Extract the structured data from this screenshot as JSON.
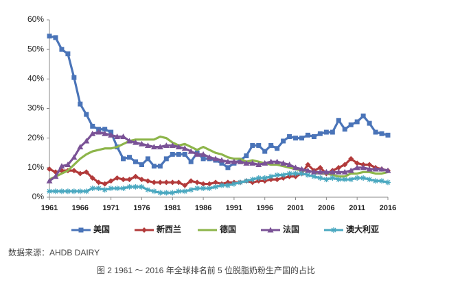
{
  "chart_data": {
    "type": "line",
    "x": [
      1961,
      1962,
      1963,
      1964,
      1965,
      1966,
      1967,
      1968,
      1969,
      1970,
      1971,
      1972,
      1973,
      1974,
      1975,
      1976,
      1977,
      1978,
      1979,
      1980,
      1981,
      1982,
      1983,
      1984,
      1985,
      1986,
      1987,
      1988,
      1989,
      1990,
      1991,
      1992,
      1993,
      1994,
      1995,
      1996,
      1997,
      1998,
      1999,
      2000,
      2001,
      2002,
      2003,
      2004,
      2005,
      2006,
      2007,
      2008,
      2009,
      2010,
      2011,
      2012,
      2013,
      2014,
      2015,
      2016
    ],
    "xlim": [
      1961,
      2016
    ],
    "xticks": [
      1961,
      1966,
      1971,
      1976,
      1981,
      1986,
      1991,
      1996,
      2001,
      2006,
      2011,
      2016
    ],
    "ylim": [
      0,
      60
    ],
    "yticks": [
      {
        "value": 0,
        "label": "0%"
      },
      {
        "value": 10,
        "label": "10%"
      },
      {
        "value": 20,
        "label": "20%"
      },
      {
        "value": 30,
        "label": "30%"
      },
      {
        "value": 40,
        "label": "40%"
      },
      {
        "value": 50,
        "label": "50%"
      },
      {
        "value": 60,
        "label": "60%"
      }
    ],
    "series": [
      {
        "name": "美国",
        "color": "#4a74b8",
        "marker": "square",
        "values": [
          54.5,
          54,
          50,
          48.5,
          40.5,
          31.5,
          28,
          24,
          23,
          23,
          22,
          17,
          13,
          13.5,
          12,
          11,
          13,
          10.5,
          10.5,
          13,
          14.5,
          14.5,
          14.5,
          12,
          15,
          13,
          13,
          12.5,
          11.5,
          10,
          11.5,
          12.5,
          14,
          17.5,
          17.5,
          15.5,
          17.5,
          16.5,
          19,
          20.5,
          20,
          20,
          21,
          20.5,
          21.5,
          22,
          22,
          26,
          23,
          24.5,
          25.5,
          27.5,
          25,
          22,
          21.5,
          21
        ]
      },
      {
        "name": "新西兰",
        "color": "#b23a3a",
        "marker": "diamond",
        "values": [
          9.5,
          8.5,
          9,
          9,
          9,
          8,
          8.5,
          6.5,
          5,
          4.5,
          5.5,
          6.5,
          6,
          6,
          7,
          6,
          5.5,
          5,
          5,
          5,
          5,
          5,
          4,
          5.5,
          5,
          4.5,
          4.5,
          5,
          4.5,
          5,
          5,
          5,
          5.5,
          5,
          5.5,
          5.5,
          6,
          6,
          6.5,
          7,
          7,
          8,
          11,
          9,
          10,
          8,
          9,
          10,
          11,
          13,
          11.5,
          11,
          11,
          10,
          9.5,
          9
        ]
      },
      {
        "name": "德国",
        "color": "#8db54a",
        "marker": "none",
        "values": [
          6,
          7,
          8,
          9,
          11,
          13,
          14.5,
          15.5,
          16,
          16.5,
          16.5,
          17,
          18,
          19,
          19.5,
          19.5,
          19.5,
          19.5,
          20.5,
          20,
          18.5,
          17.5,
          18,
          17,
          16,
          17,
          16,
          15,
          14.5,
          13.5,
          13,
          13,
          12,
          12.5,
          12,
          11.5,
          11,
          11,
          10.5,
          10,
          9.5,
          9,
          9,
          8.5,
          8,
          8,
          7.5,
          7,
          7,
          8,
          8,
          8.5,
          8.5,
          8,
          8,
          8.5
        ]
      },
      {
        "name": "法国",
        "color": "#7a5296",
        "marker": "triangle",
        "values": [
          5.5,
          7,
          10.5,
          11,
          13.5,
          17,
          19,
          21.5,
          22,
          21.5,
          21,
          20.5,
          20.5,
          19,
          18.5,
          18,
          17.5,
          17,
          17,
          17.5,
          17.5,
          17,
          16.5,
          15.5,
          14.5,
          14.5,
          13.5,
          13,
          12.5,
          12,
          12,
          12,
          11.5,
          11.5,
          11,
          11.5,
          12,
          12,
          11.5,
          11,
          10,
          9.5,
          9,
          8.5,
          8.5,
          8.5,
          8.5,
          8.5,
          8.5,
          9,
          10,
          10,
          9.5,
          9.5,
          9.5,
          9
        ]
      },
      {
        "name": "澳大利亚",
        "color": "#4aa8c0",
        "marker": "star",
        "values": [
          2,
          2,
          2,
          2,
          2,
          2,
          2,
          3,
          3,
          2.5,
          3,
          3,
          3,
          3.5,
          3.5,
          3.5,
          2.5,
          2,
          1.5,
          1.5,
          1.5,
          2,
          2,
          2.5,
          3,
          3,
          3,
          3.5,
          4,
          4,
          4.5,
          5,
          5.5,
          6,
          6.5,
          6.5,
          7,
          7.5,
          7.5,
          8,
          8,
          8,
          7.5,
          7,
          6.5,
          6,
          6.5,
          6,
          6,
          6,
          6.5,
          6.5,
          6,
          5.5,
          5.5,
          5
        ]
      }
    ],
    "source": "数据来源：AHDB DAIRY",
    "caption": "图 2 1961 ～ 2016 年全球排名前 5 位脱脂奶粉生产国的占比"
  }
}
